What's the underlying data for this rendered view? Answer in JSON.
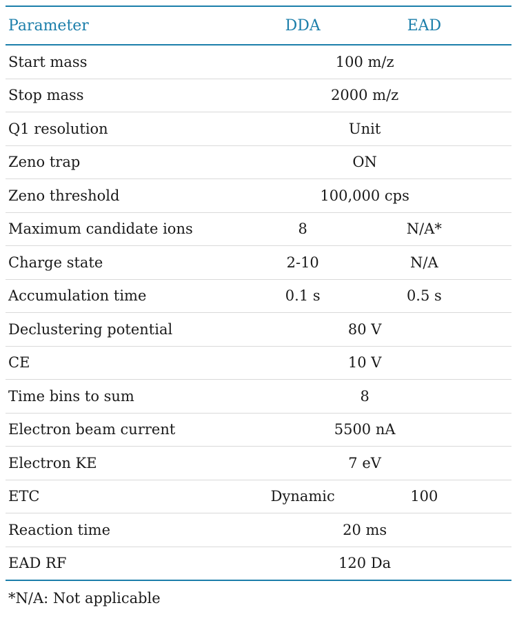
{
  "accent_color": "#1b7eaa",
  "separator_color": "#d9d9d9",
  "table": {
    "header": {
      "param": "Parameter",
      "dda": "DDA",
      "ead": "EAD"
    },
    "rows": [
      {
        "param": "Start mass",
        "merged": "100 m/z"
      },
      {
        "param": "Stop mass",
        "merged": "2000 m/z"
      },
      {
        "param": "Q1 resolution",
        "merged": "Unit"
      },
      {
        "param": "Zeno trap",
        "merged": "ON"
      },
      {
        "param": "Zeno threshold",
        "merged": "100,000 cps"
      },
      {
        "param": "Maximum candidate ions",
        "dda": "8",
        "ead": "N/A*"
      },
      {
        "param": "Charge state",
        "dda": "2-10",
        "ead": "N/A"
      },
      {
        "param": "Accumulation time",
        "dda": "0.1 s",
        "ead": "0.5 s"
      },
      {
        "param": "Declustering potential",
        "merged": "80 V"
      },
      {
        "param": "CE",
        "merged": "10 V"
      },
      {
        "param": "Time bins to sum",
        "merged": "8"
      },
      {
        "param": "Electron beam current",
        "merged": "5500 nA"
      },
      {
        "param": "Electron KE",
        "merged": "7 eV"
      },
      {
        "param": "ETC",
        "dda": "Dynamic",
        "ead": "100"
      },
      {
        "param": "Reaction time",
        "merged": "20 ms"
      },
      {
        "param": "EAD RF",
        "merged": "120 Da"
      }
    ]
  },
  "footnote": "*N/A: Not applicable"
}
